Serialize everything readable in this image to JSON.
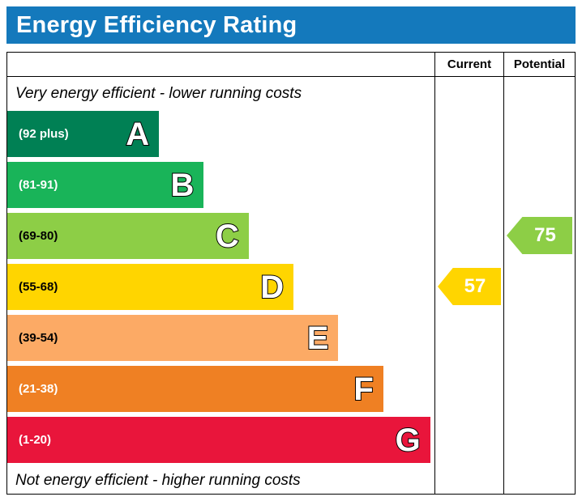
{
  "header": {
    "title": "Energy Efficiency Rating",
    "bg_color": "#1479bc",
    "text_color": "#ffffff"
  },
  "columns": {
    "current_label": "Current",
    "potential_label": "Potential"
  },
  "notes": {
    "top": "Very energy efficient - lower running costs",
    "bottom": "Not energy efficient - higher running costs"
  },
  "chart_data": {
    "type": "bar",
    "title": "Energy Efficiency Rating",
    "bands": [
      {
        "letter": "A",
        "label": "(92 plus)",
        "min": 92,
        "max": 100,
        "color": "#008054",
        "label_color": "#ffffff",
        "width": "35.5%"
      },
      {
        "letter": "B",
        "label": "(81-91)",
        "min": 81,
        "max": 91,
        "color": "#19b459",
        "label_color": "#ffffff",
        "width": "46%"
      },
      {
        "letter": "C",
        "label": "(69-80)",
        "min": 69,
        "max": 80,
        "color": "#8dce46",
        "label_color": "#000000",
        "width": "56.5%"
      },
      {
        "letter": "D",
        "label": "(55-68)",
        "min": 55,
        "max": 68,
        "color": "#ffd500",
        "label_color": "#000000",
        "width": "67%"
      },
      {
        "letter": "E",
        "label": "(39-54)",
        "min": 39,
        "max": 54,
        "color": "#fcaa65",
        "label_color": "#000000",
        "width": "77.5%"
      },
      {
        "letter": "F",
        "label": "(21-38)",
        "min": 21,
        "max": 38,
        "color": "#ef8023",
        "label_color": "#ffffff",
        "width": "88%"
      },
      {
        "letter": "G",
        "label": "(1-20)",
        "min": 1,
        "max": 20,
        "color": "#e9153b",
        "label_color": "#ffffff",
        "width": "99%"
      }
    ],
    "current": {
      "value": 57,
      "band": "D",
      "color": "#ffd500"
    },
    "potential": {
      "value": 75,
      "band": "C",
      "color": "#8dce46"
    }
  }
}
